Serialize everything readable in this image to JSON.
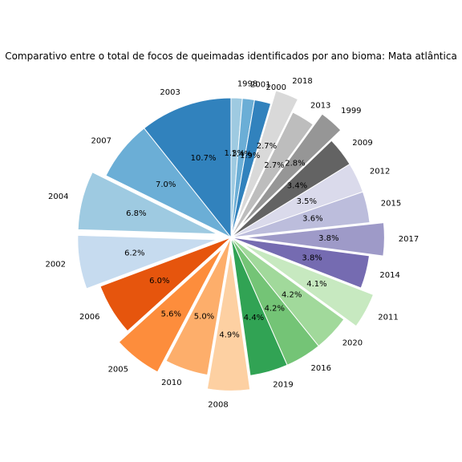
{
  "chart_data": {
    "type": "pie",
    "title": "Comparativo entre o total de focos de queimadas identificados por ano bioma: Mata atlântica",
    "start_angle_deg": 90,
    "direction": "clockwise",
    "slices": [
      {
        "label": "1998",
        "pct": 1.3,
        "pct_label": "1.3%",
        "color": "#9ecae1",
        "explode": 0.0
      },
      {
        "label": "2001",
        "pct": 1.4,
        "pct_label": "1.4%",
        "color": "#6baed6",
        "explode": 0.0
      },
      {
        "label": "2000",
        "pct": 1.9,
        "pct_label": "1.9%",
        "color": "#3182bd",
        "explode": 0.0
      },
      {
        "label": "2018",
        "pct": 2.7,
        "pct_label": "2.7%",
        "color": "#d9d9d9",
        "explode": 0.1
      },
      {
        "label": "2013",
        "pct": 2.7,
        "pct_label": "2.7%",
        "color": "#bdbdbd",
        "explode": 0.0
      },
      {
        "label": "1999",
        "pct": 2.8,
        "pct_label": "2.8%",
        "color": "#969696",
        "explode": 0.1
      },
      {
        "label": "2009",
        "pct": 3.4,
        "pct_label": "3.4%",
        "color": "#636363",
        "explode": 0.0
      },
      {
        "label": "2012",
        "pct": 3.5,
        "pct_label": "3.5%",
        "color": "#dadaeb",
        "explode": 0.0
      },
      {
        "label": "2015",
        "pct": 3.6,
        "pct_label": "3.6%",
        "color": "#bcbddc",
        "explode": 0.0
      },
      {
        "label": "2017",
        "pct": 3.8,
        "pct_label": "3.8%",
        "color": "#9e9ac8",
        "explode": 0.1
      },
      {
        "label": "2014",
        "pct": 3.8,
        "pct_label": "3.8%",
        "color": "#756bb1",
        "explode": 0.0
      },
      {
        "label": "2011",
        "pct": 4.1,
        "pct_label": "4.1%",
        "color": "#c7e9c0",
        "explode": 0.1
      },
      {
        "label": "2020",
        "pct": 4.2,
        "pct_label": "4.2%",
        "color": "#a1d99b",
        "explode": 0.0
      },
      {
        "label": "2016",
        "pct": 4.2,
        "pct_label": "4.2%",
        "color": "#74c476",
        "explode": 0.0
      },
      {
        "label": "2019",
        "pct": 4.4,
        "pct_label": "4.4%",
        "color": "#31a354",
        "explode": 0.0
      },
      {
        "label": "2008",
        "pct": 4.9,
        "pct_label": "4.9%",
        "color": "#fdd0a2",
        "explode": 0.1
      },
      {
        "label": "2010",
        "pct": 5.0,
        "pct_label": "5.0%",
        "color": "#fdae6b",
        "explode": 0.0
      },
      {
        "label": "2005",
        "pct": 5.6,
        "pct_label": "5.6%",
        "color": "#fd8d3c",
        "explode": 0.1
      },
      {
        "label": "2006",
        "pct": 6.0,
        "pct_label": "6.0%",
        "color": "#e6550d",
        "explode": 0.0
      },
      {
        "label": "2002",
        "pct": 6.2,
        "pct_label": "6.2%",
        "color": "#c6dbef",
        "explode": 0.1
      },
      {
        "label": "2004",
        "pct": 6.8,
        "pct_label": "6.8%",
        "color": "#9ecae1",
        "explode": 0.1
      },
      {
        "label": "2007",
        "pct": 7.0,
        "pct_label": "7.0%",
        "color": "#6baed6",
        "explode": 0.0
      },
      {
        "label": "2003",
        "pct": 10.7,
        "pct_label": "10.7%",
        "color": "#3182bd",
        "explode": 0.0
      }
    ]
  }
}
